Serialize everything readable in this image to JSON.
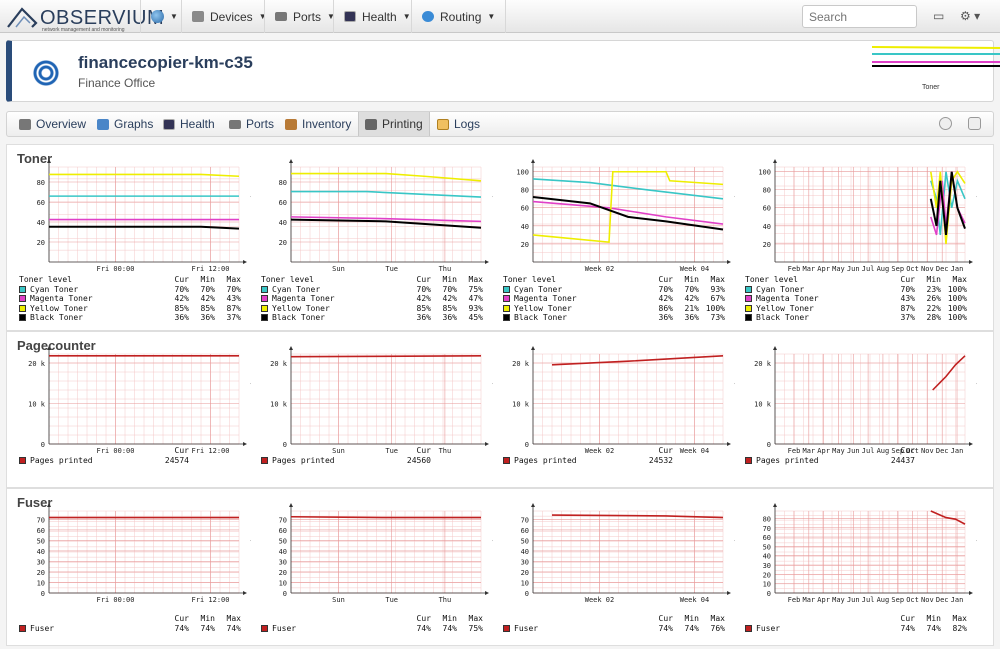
{
  "nav": {
    "logo_text": "OBSERVIUM",
    "logo_sub": "network management and monitoring",
    "items": [
      {
        "label": "Devices",
        "icon": "devices-icon"
      },
      {
        "label": "Ports",
        "icon": "ports-icon"
      },
      {
        "label": "Health",
        "icon": "health-icon"
      },
      {
        "label": "Routing",
        "icon": "routing-icon"
      }
    ],
    "search_placeholder": "Search"
  },
  "device": {
    "name": "financecopier-km-c35",
    "location": "Finance Office",
    "sparkline_label": "Toner"
  },
  "tabs": [
    {
      "label": "Overview"
    },
    {
      "label": "Graphs"
    },
    {
      "label": "Health"
    },
    {
      "label": "Ports"
    },
    {
      "label": "Inventory"
    },
    {
      "label": "Printing"
    },
    {
      "label": "Logs"
    }
  ],
  "watermark": "RRDTOOL / TOBI OETIKER",
  "colors": {
    "cyan": "#39c6c6",
    "magenta": "#e040c8",
    "yellow": "#eeee00",
    "black": "#000000",
    "red": "#c02020"
  },
  "sections": [
    {
      "title": "Toner",
      "legend_header": [
        "Toner level",
        "Cur",
        "Min",
        "Max"
      ],
      "graphs": [
        {
          "xlabels": [
            "Fri 00:00",
            "Fri 12:00"
          ],
          "yticks": [
            "20",
            "40",
            "60",
            "80"
          ],
          "rows": [
            [
              "Cyan Toner",
              "70%",
              "70%",
              "70%"
            ],
            [
              "Magenta Toner",
              "42%",
              "42%",
              "43%"
            ],
            [
              "Yellow Toner",
              "85%",
              "85%",
              "87%"
            ],
            [
              "Black Toner",
              "36%",
              "36%",
              "37%"
            ]
          ]
        },
        {
          "xlabels": [
            "Sun",
            "Tue",
            "Thu"
          ],
          "yticks": [
            "20",
            "40",
            "60",
            "80"
          ],
          "rows": [
            [
              "Cyan Toner",
              "70%",
              "70%",
              "75%"
            ],
            [
              "Magenta Toner",
              "42%",
              "42%",
              "47%"
            ],
            [
              "Yellow Toner",
              "85%",
              "85%",
              "93%"
            ],
            [
              "Black Toner",
              "36%",
              "36%",
              "45%"
            ]
          ]
        },
        {
          "xlabels": [
            "Week 02",
            "Week 04"
          ],
          "yticks": [
            "20",
            "40",
            "60",
            "80",
            "100"
          ],
          "rows": [
            [
              "Cyan Toner",
              "70%",
              "70%",
              "93%"
            ],
            [
              "Magenta Toner",
              "42%",
              "42%",
              "67%"
            ],
            [
              "Yellow Toner",
              "86%",
              "21%",
              "100%"
            ],
            [
              "Black Toner",
              "36%",
              "36%",
              "73%"
            ]
          ]
        },
        {
          "xlabels": [
            "Feb",
            "Mar",
            "Apr",
            "May",
            "Jun",
            "Jul",
            "Aug",
            "Sep",
            "Oct",
            "Nov",
            "Dec",
            "Jan"
          ],
          "yticks": [
            "20",
            "40",
            "60",
            "80",
            "100"
          ],
          "rows": [
            [
              "Cyan Toner",
              "70%",
              "23%",
              "100%"
            ],
            [
              "Magenta Toner",
              "43%",
              "26%",
              "100%"
            ],
            [
              "Yellow Toner",
              "87%",
              "22%",
              "100%"
            ],
            [
              "Black Toner",
              "37%",
              "28%",
              "100%"
            ]
          ]
        }
      ]
    },
    {
      "title": "Pagecounter",
      "legend_header": [
        "",
        "Cur",
        "",
        ""
      ],
      "graphs": [
        {
          "xlabels": [
            "Fri 00:00",
            "Fri 12:00"
          ],
          "yticks": [
            "0",
            "10 k",
            "20 k"
          ],
          "rows": [
            [
              "Pages printed",
              "24574",
              "",
              ""
            ]
          ]
        },
        {
          "xlabels": [
            "Sun",
            "Tue",
            "Thu"
          ],
          "yticks": [
            "0",
            "10 k",
            "20 k"
          ],
          "rows": [
            [
              "Pages printed",
              "24560",
              "",
              ""
            ]
          ]
        },
        {
          "xlabels": [
            "Week 02",
            "Week 04"
          ],
          "yticks": [
            "0",
            "10 k",
            "20 k"
          ],
          "rows": [
            [
              "Pages printed",
              "24532",
              "",
              ""
            ]
          ]
        },
        {
          "xlabels": [
            "Feb",
            "Mar",
            "Apr",
            "May",
            "Jun",
            "Jul",
            "Aug",
            "Sep",
            "Oct",
            "Nov",
            "Dec",
            "Jan"
          ],
          "yticks": [
            "0",
            "10 k",
            "20 k"
          ],
          "rows": [
            [
              "Pages printed",
              "24437",
              "",
              ""
            ]
          ]
        }
      ]
    },
    {
      "title": "Fuser",
      "legend_header": [
        "",
        "Cur",
        "Min",
        "Max"
      ],
      "graphs": [
        {
          "xlabels": [
            "Fri 00:00",
            "Fri 12:00"
          ],
          "yticks": [
            "0",
            "10",
            "20",
            "30",
            "40",
            "50",
            "60",
            "70"
          ],
          "rows": [
            [
              "Fuser",
              "74%",
              "74%",
              "74%"
            ]
          ]
        },
        {
          "xlabels": [
            "Sun",
            "Tue",
            "Thu"
          ],
          "yticks": [
            "0",
            "10",
            "20",
            "30",
            "40",
            "50",
            "60",
            "70"
          ],
          "rows": [
            [
              "Fuser",
              "74%",
              "74%",
              "75%"
            ]
          ]
        },
        {
          "xlabels": [
            "Week 02",
            "Week 04"
          ],
          "yticks": [
            "0",
            "10",
            "20",
            "30",
            "40",
            "50",
            "60",
            "70"
          ],
          "rows": [
            [
              "Fuser",
              "74%",
              "74%",
              "76%"
            ]
          ]
        },
        {
          "xlabels": [
            "Feb",
            "Mar",
            "Apr",
            "May",
            "Jun",
            "Jul",
            "Aug",
            "Sep",
            "Oct",
            "Nov",
            "Dec",
            "Jan"
          ],
          "yticks": [
            "0",
            "10",
            "20",
            "30",
            "40",
            "50",
            "60",
            "70",
            "80"
          ],
          "rows": [
            [
              "Fuser",
              "74%",
              "74%",
              "82%"
            ]
          ]
        }
      ]
    }
  ]
}
